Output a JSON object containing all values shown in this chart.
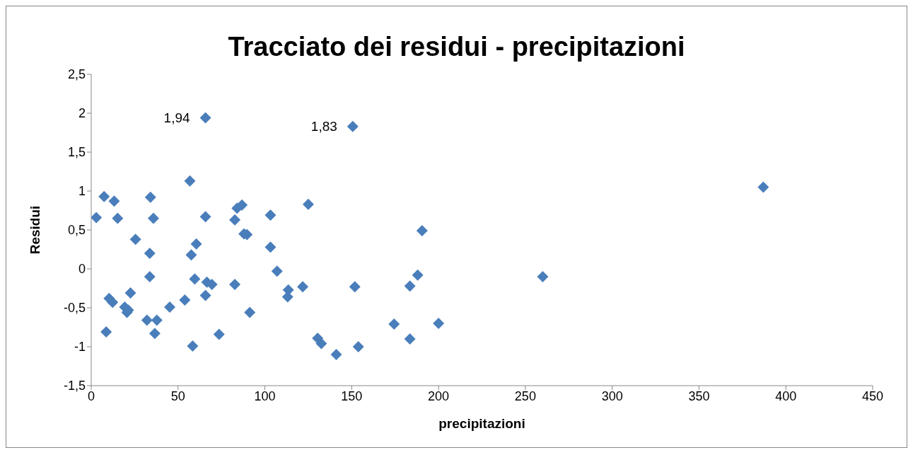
{
  "chart_data": {
    "type": "scatter",
    "title": "Tracciato dei residui - precipitazioni",
    "xlabel": "precipitazioni",
    "ylabel": "Residui",
    "x": [
      2.9,
      7.4,
      13.2,
      15.2,
      25.5,
      34.1,
      35.8,
      33.7,
      56.8,
      57.6,
      60.5,
      65.8,
      65.8,
      33.7,
      8.6,
      10.3,
      12.3,
      22.6,
      19.3,
      20.6,
      21.4,
      32.1,
      37.8,
      36.6,
      45.2,
      53.9,
      59.6,
      58.4,
      65.8,
      66.6,
      69.5,
      73.6,
      82.7,
      82.7,
      84.0,
      86.8,
      88.0,
      89.7,
      91.3,
      103.2,
      103.2,
      107,
      113.5,
      113.1,
      121.8,
      125,
      130.4,
      132.5,
      141.1,
      150.6,
      151.8,
      153.8,
      174.4,
      183.5,
      183.5,
      188,
      190.5,
      200,
      260,
      387
    ],
    "series": [
      {
        "color": "#4a7ebb",
        "values": [
          0.66,
          0.93,
          0.87,
          0.65,
          0.38,
          0.92,
          0.65,
          0.2,
          1.13,
          0.18,
          0.32,
          1.94,
          0.67,
          -0.1,
          -0.81,
          -0.38,
          -0.43,
          -0.31,
          -0.49,
          -0.56,
          -0.53,
          -0.66,
          -0.66,
          -0.83,
          -0.49,
          -0.4,
          -0.13,
          -0.99,
          -0.34,
          -0.17,
          -0.2,
          -0.84,
          -0.2,
          0.63,
          0.78,
          0.82,
          0.45,
          0.44,
          -0.56,
          0.69,
          0.28,
          -0.03,
          -0.27,
          -0.36,
          -0.23,
          0.83,
          -0.89,
          -0.96,
          -1.1,
          1.83,
          -0.23,
          -1.0,
          -0.71,
          -0.22,
          -0.9,
          -0.08,
          0.49,
          -0.7,
          -0.1,
          1.05
        ]
      }
    ],
    "annotations": [
      {
        "text": "1,94",
        "x": 65.8,
        "y": 1.94
      },
      {
        "text": "1,83",
        "x": 150.6,
        "y": 1.83
      }
    ],
    "xlim": [
      0,
      450
    ],
    "xticks": [
      0,
      50,
      100,
      150,
      200,
      250,
      300,
      350,
      400,
      450
    ],
    "ylim": [
      -1.5,
      2.5
    ],
    "yticks": [
      {
        "value": -1.5,
        "label": "-1,5"
      },
      {
        "value": -1,
        "label": "-1"
      },
      {
        "value": -0.5,
        "label": "-0,5"
      },
      {
        "value": 0,
        "label": "0"
      },
      {
        "value": 0.5,
        "label": "0,5"
      },
      {
        "value": 1,
        "label": "1"
      },
      {
        "value": 1.5,
        "label": "1,5"
      },
      {
        "value": 2,
        "label": "2"
      },
      {
        "value": 2.5,
        "label": "2,5"
      }
    ],
    "marker": "diamond",
    "grid": false,
    "legend": false
  }
}
